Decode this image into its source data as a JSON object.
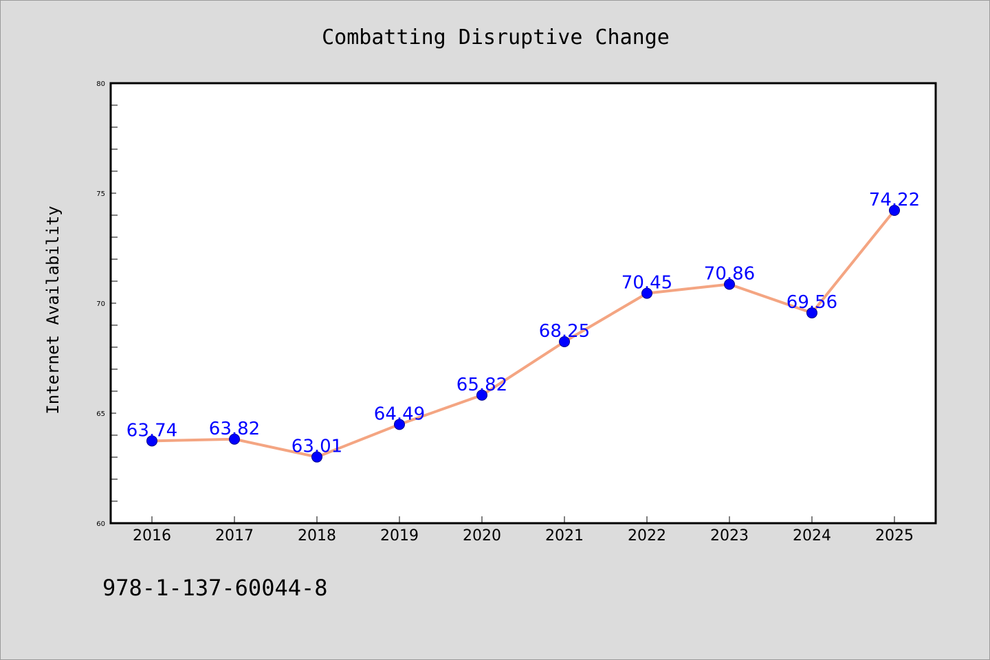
{
  "chart_data": {
    "type": "line",
    "title": "Combatting Disruptive Change",
    "xlabel": "",
    "ylabel": "Internet Availability",
    "categories": [
      "2016",
      "2017",
      "2018",
      "2019",
      "2020",
      "2021",
      "2022",
      "2023",
      "2024",
      "2025"
    ],
    "series": [
      {
        "values": [
          63.74,
          63.82,
          63.01,
          64.49,
          65.82,
          68.25,
          70.45,
          70.86,
          69.56,
          74.22
        ],
        "data_labels": [
          "63.74",
          "63.82",
          "63.01",
          "64.49",
          "65.82",
          "68.25",
          "70.45",
          "70.86",
          "69.56",
          "74.22"
        ],
        "line_color": "#f4a582",
        "marker_color": "#0000ff",
        "label_color": "#0000ff"
      }
    ],
    "ylim": [
      60,
      80
    ],
    "yticks": [
      "60",
      "65",
      "70",
      "75",
      "80"
    ],
    "yminor_step": 1,
    "grid": false,
    "legend": "none"
  },
  "footer": {
    "text": "978-1-137-60044-8"
  },
  "colors": {
    "background": "#dcdcdc",
    "plot_background": "#ffffff",
    "axis": "#000000"
  }
}
